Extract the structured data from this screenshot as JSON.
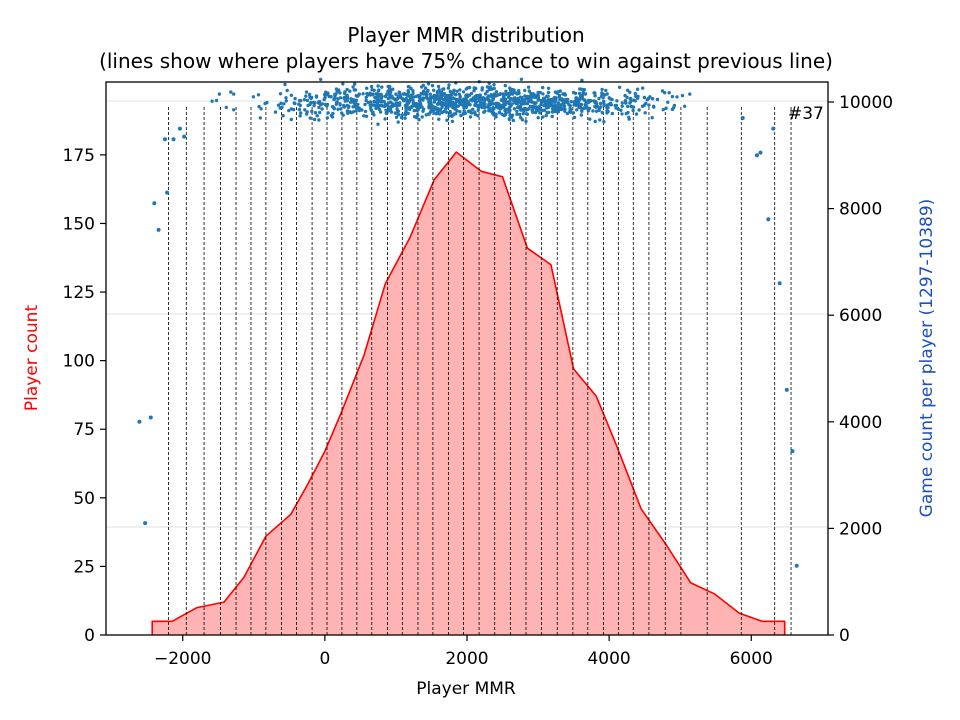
{
  "chart_data": {
    "type": "area",
    "title": "Player MMR distribution",
    "subtitle": "(lines show where players have 75% chance to win against previous line)",
    "xlabel": "Player MMR",
    "ylabel_left": "Player count",
    "ylabel_right": "Game count per player (1297-10389)",
    "xlim": [
      -3080,
      7080
    ],
    "ylim_left": [
      0,
      195
    ],
    "ylim_right": [
      0,
      10000
    ],
    "x_ticks": [
      -2000,
      0,
      2000,
      4000,
      6000
    ],
    "x_tick_labels": [
      "−2000",
      "0",
      "2000",
      "4000",
      "6000"
    ],
    "y_left_ticks": [
      0,
      25,
      50,
      75,
      100,
      125,
      150,
      175
    ],
    "y_left_tick_labels": [
      "0",
      "25",
      "50",
      "75",
      "100",
      "125",
      "150",
      "175"
    ],
    "y_right_ticks": [
      0,
      2000,
      4000,
      6000,
      8000,
      10000
    ],
    "y_right_tick_labels": [
      "0",
      "2000",
      "4000",
      "6000",
      "8000",
      "10000"
    ],
    "last_line_label": "#37",
    "colors": {
      "count_line": "#ff0000",
      "count_fill": "#ffb3b3",
      "scatter": "#1f77b4",
      "ylabel_left": "#ff0000",
      "ylabel_right": "#1a4fbf",
      "vlines": "#000000"
    },
    "grid": "horizontal-light",
    "series": [
      {
        "name": "Player count",
        "axis": "left",
        "x": [
          -2430,
          -2430,
          -2150,
          -1800,
          -1420,
          -1140,
          -830,
          -480,
          -240,
          0,
          230,
          550,
          850,
          1200,
          1540,
          1850,
          2200,
          2500,
          2850,
          3180,
          3500,
          3820,
          4120,
          4450,
          4800,
          5150,
          5480,
          5830,
          6150,
          6470,
          6470
        ],
        "values": [
          0,
          5,
          5,
          10,
          12,
          21,
          36,
          44,
          55,
          67,
          81,
          102,
          128,
          145,
          166,
          176,
          169,
          167,
          141,
          135,
          97,
          87,
          68,
          46,
          33,
          19,
          15,
          8,
          5,
          5,
          0
        ]
      },
      {
        "name": "Game count per player",
        "axis": "right",
        "kind": "scatter"
      }
    ],
    "vertical_lines_x": [
      -2200,
      -1950,
      -1700,
      -1470,
      -1250,
      -1040,
      -830,
      -610,
      -400,
      -180,
      30,
      240,
      450,
      660,
      880,
      1090,
      1310,
      1520,
      1740,
      1950,
      2170,
      2390,
      2610,
      2830,
      3050,
      3270,
      3490,
      3700,
      3920,
      4130,
      4340,
      4560,
      4790,
      5010,
      5380,
      5860,
      6330,
      6560
    ],
    "scatter_outliers": [
      {
        "x": -2610,
        "y": 4000
      },
      {
        "x": -2530,
        "y": 2100
      },
      {
        "x": -2450,
        "y": 4080
      },
      {
        "x": -2400,
        "y": 8100
      },
      {
        "x": -2340,
        "y": 7600
      },
      {
        "x": -2250,
        "y": 9300
      },
      {
        "x": -2220,
        "y": 8300
      },
      {
        "x": -2130,
        "y": 9300
      },
      {
        "x": -2040,
        "y": 9500
      },
      {
        "x": -1980,
        "y": 9350
      },
      {
        "x": 5880,
        "y": 9700
      },
      {
        "x": 6080,
        "y": 9000
      },
      {
        "x": 6130,
        "y": 9050
      },
      {
        "x": 6240,
        "y": 7800
      },
      {
        "x": 6310,
        "y": 9500
      },
      {
        "x": 6400,
        "y": 6600
      },
      {
        "x": 6500,
        "y": 4600
      },
      {
        "x": 6580,
        "y": 3450
      },
      {
        "x": 6640,
        "y": 1300
      }
    ],
    "scatter_band": {
      "x_range": [
        -1900,
        5800
      ],
      "y_center": 10000,
      "y_spread": 500,
      "count": 1200
    }
  }
}
